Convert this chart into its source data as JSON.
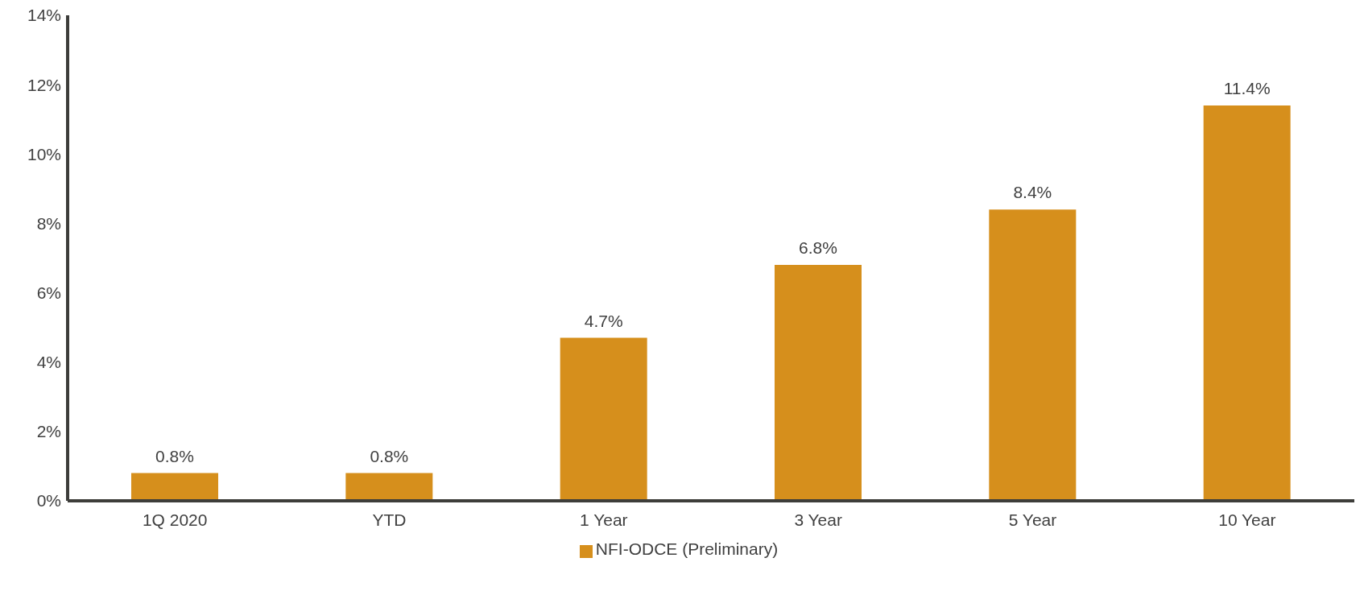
{
  "chart_data": {
    "type": "bar",
    "categories": [
      "1Q 2020",
      "YTD",
      "1 Year",
      "3 Year",
      "5 Year",
      "10 Year"
    ],
    "series": [
      {
        "name": "NFI-ODCE (Preliminary)",
        "color": "#d68f1c",
        "values": [
          0.8,
          0.8,
          4.7,
          6.8,
          8.4,
          11.4
        ],
        "value_labels": [
          "0.8%",
          "0.8%",
          "4.7%",
          "6.8%",
          "8.4%",
          "11.4%"
        ]
      }
    ],
    "ylim": [
      0,
      14
    ],
    "yticks": [
      {
        "value": 0,
        "label": "0%"
      },
      {
        "value": 2,
        "label": "2%"
      },
      {
        "value": 4,
        "label": "4%"
      },
      {
        "value": 6,
        "label": "6%"
      },
      {
        "value": 8,
        "label": "8%"
      },
      {
        "value": 10,
        "label": "10%"
      },
      {
        "value": 12,
        "label": "12%"
      },
      {
        "value": 14,
        "label": "14%"
      }
    ],
    "grid": false,
    "legend": "bottom"
  }
}
